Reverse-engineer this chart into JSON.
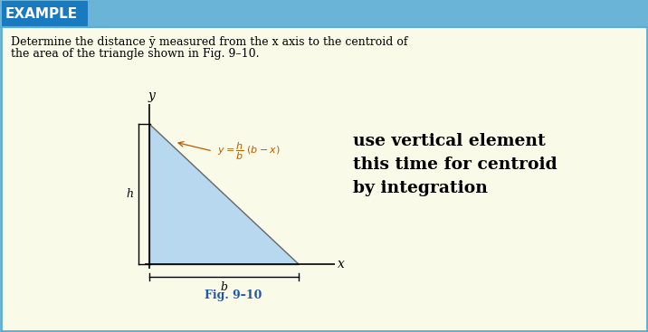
{
  "bg_color": "#fafae8",
  "header_dark_color": "#1a7abf",
  "header_light_color": "#6ab4d8",
  "header_text": "EXAMPLE",
  "header_text_color": "#ffffff",
  "body_text_line1": "Determine the distance ȳ measured from the x axis to the centroid of",
  "body_text_line2": "the area of the triangle shown in Fig. 9–10.",
  "triangle_fill": "#b8d8f0",
  "triangle_edge": "#666666",
  "fig_label": "Fig. 9–10",
  "fig_label_color": "#2255aa",
  "right_text_line1": "use vertical element",
  "right_text_line2": "this time for centroid",
  "right_text_line3": "by integration",
  "formula_color": "#b85c00",
  "label_color_dark": "#000000",
  "border_color": "#5badd6",
  "ox": 165,
  "oy": 75,
  "blen": 165,
  "hlen": 155
}
